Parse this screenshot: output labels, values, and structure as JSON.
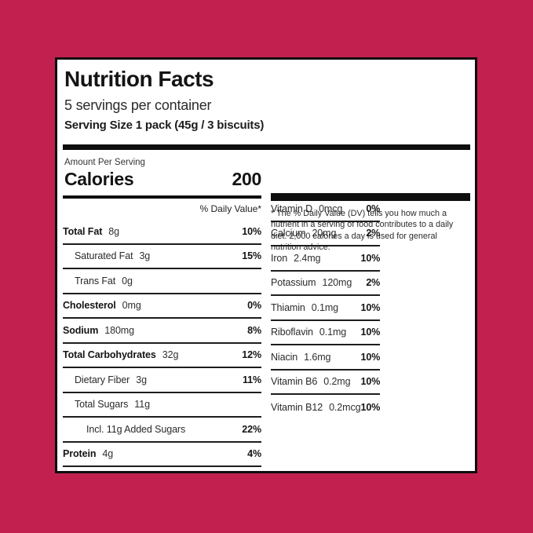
{
  "background_color": "#C22150",
  "label": {
    "title": "Nutrition Facts",
    "servings_per_container": "5 servings per container",
    "serving_size": "Serving Size 1 pack (45g / 3 biscuits)",
    "amount_per_serving": "Amount Per Serving",
    "calories_label": "Calories",
    "calories_value": "200",
    "daily_value_header": "% Daily Value*",
    "left_rows": [
      {
        "label": "Total Fat",
        "value": "8g",
        "percent": "10%",
        "bold": true,
        "indent": 0
      },
      {
        "label": "Saturated Fat",
        "value": "3g",
        "percent": "15%",
        "bold": false,
        "indent": 1
      },
      {
        "label": "Trans Fat",
        "value": "0g",
        "percent": "",
        "bold": false,
        "indent": 1
      },
      {
        "label": "Cholesterol",
        "value": "0mg",
        "percent": "0%",
        "bold": true,
        "indent": 0
      },
      {
        "label": "Sodium",
        "value": "180mg",
        "percent": "8%",
        "bold": true,
        "indent": 0
      },
      {
        "label": "Total Carbohydrates",
        "value": "32g",
        "percent": "12%",
        "bold": true,
        "indent": 0
      },
      {
        "label": "Dietary Fiber",
        "value": "3g",
        "percent": "11%",
        "bold": false,
        "indent": 1
      },
      {
        "label": "Total Sugars",
        "value": "11g",
        "percent": "",
        "bold": false,
        "indent": 1
      },
      {
        "label": "Incl. 11g Added Sugars",
        "value": "",
        "percent": "22%",
        "bold": false,
        "indent": 2
      },
      {
        "label": "Protein",
        "value": "4g",
        "percent": "4%",
        "bold": true,
        "indent": 0
      }
    ],
    "right_rows": [
      {
        "label": "Vitamin D",
        "value": "0mcg",
        "percent": "0%",
        "bold": false,
        "indent": 0
      },
      {
        "label": "Calcium",
        "value": "20mg",
        "percent": "2%",
        "bold": false,
        "indent": 0
      },
      {
        "label": "Iron",
        "value": "2.4mg",
        "percent": "10%",
        "bold": false,
        "indent": 0
      },
      {
        "label": "Potassium",
        "value": "120mg",
        "percent": "2%",
        "bold": false,
        "indent": 0
      },
      {
        "label": "Thiamin",
        "value": "0.1mg",
        "percent": "10%",
        "bold": false,
        "indent": 0
      },
      {
        "label": "Riboflavin",
        "value": "0.1mg",
        "percent": "10%",
        "bold": false,
        "indent": 0
      },
      {
        "label": "Niacin",
        "value": "1.6mg",
        "percent": "10%",
        "bold": false,
        "indent": 0
      },
      {
        "label": "Vitamin B6",
        "value": "0.2mg",
        "percent": "10%",
        "bold": false,
        "indent": 0
      },
      {
        "label": "Vitamin B12",
        "value": "0.2mcg",
        "percent": "10%",
        "bold": false,
        "indent": 0
      }
    ],
    "footnote": "* The % Daily Value (DV) tells you how much a nutrient in a serving of food contributes to a daily diet. 2,000 calories a day is used for general nutrition advice."
  }
}
